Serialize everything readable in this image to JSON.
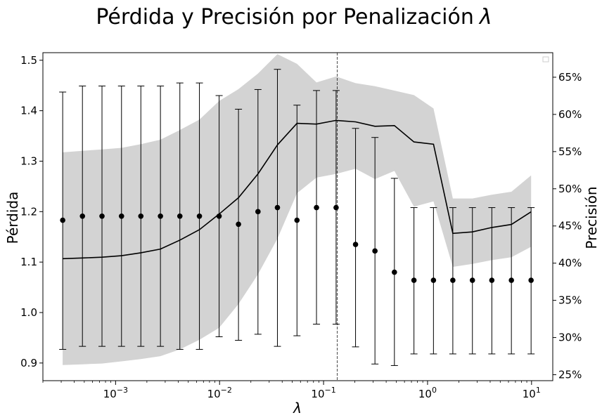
{
  "chart_data": {
    "type": "line",
    "title": "Pérdida y Precisión por Penalización",
    "title_symbol": "λ",
    "xlabel": "λ",
    "ylabel_left": "Pérdida",
    "ylabel_right": "Precisión",
    "x_scale": "log",
    "xlim": [
      0.0002,
      16
    ],
    "ylim_left": [
      0.865,
      1.515
    ],
    "ylim_right": [
      24.2,
      68.3
    ],
    "legend": "top-right (empty)",
    "grid": false,
    "x_ticks": [
      {
        "value": 0.001,
        "base": "10",
        "exp": "−3"
      },
      {
        "value": 0.01,
        "base": "10",
        "exp": "−2"
      },
      {
        "value": 0.1,
        "base": "10",
        "exp": "−1"
      },
      {
        "value": 1,
        "base": "10",
        "exp": "0"
      },
      {
        "value": 10,
        "base": "10",
        "exp": "1"
      }
    ],
    "y_ticks_left": [
      {
        "value": 0.9,
        "label": "0.9"
      },
      {
        "value": 1.0,
        "label": "1.0"
      },
      {
        "value": 1.1,
        "label": "1.1"
      },
      {
        "value": 1.2,
        "label": "1.2"
      },
      {
        "value": 1.3,
        "label": "1.3"
      },
      {
        "value": 1.4,
        "label": "1.4"
      },
      {
        "value": 1.5,
        "label": "1.5"
      }
    ],
    "y_ticks_right": [
      {
        "value": 25,
        "label": "25%"
      },
      {
        "value": 30,
        "label": "30%"
      },
      {
        "value": 35,
        "label": "35%"
      },
      {
        "value": 40,
        "label": "40%"
      },
      {
        "value": 45,
        "label": "45%"
      },
      {
        "value": 50,
        "label": "50%"
      },
      {
        "value": 55,
        "label": "55%"
      },
      {
        "value": 60,
        "label": "60%"
      },
      {
        "value": 65,
        "label": "65%"
      }
    ],
    "best_lambda": 0.135,
    "lambda": [
      0.00031,
      0.00048,
      0.00074,
      0.00114,
      0.00175,
      0.0027,
      0.00415,
      0.0064,
      0.0099,
      0.0152,
      0.0234,
      0.036,
      0.0555,
      0.0855,
      0.132,
      0.203,
      0.312,
      0.48,
      0.74,
      1.14,
      1.75,
      2.7,
      4.15,
      6.4,
      9.9
    ],
    "accuracy_pct": [
      40.6,
      40.7,
      40.8,
      41.0,
      41.4,
      41.9,
      43.1,
      44.5,
      46.6,
      48.8,
      52.0,
      55.9,
      58.8,
      58.7,
      59.2,
      59.0,
      58.4,
      58.5,
      56.3,
      56.0,
      44.0,
      44.2,
      44.8,
      45.2,
      46.9
    ],
    "accuracy_upper_pct": [
      54.9,
      55.1,
      55.3,
      55.5,
      56.0,
      56.6,
      57.9,
      59.3,
      61.8,
      63.4,
      65.5,
      68.1,
      66.8,
      64.3,
      65.1,
      64.2,
      63.8,
      63.2,
      62.6,
      60.8,
      48.7,
      48.7,
      49.2,
      49.6,
      51.8
    ],
    "accuracy_lower_pct": [
      26.3,
      26.4,
      26.5,
      26.8,
      27.1,
      27.5,
      28.4,
      29.7,
      31.3,
      34.5,
      38.5,
      43.3,
      49.4,
      51.5,
      52.0,
      52.7,
      51.3,
      52.4,
      47.6,
      48.3,
      39.5,
      39.9,
      40.4,
      40.8,
      42.2
    ],
    "loss": [
      1.183,
      1.191,
      1.191,
      1.191,
      1.191,
      1.191,
      1.191,
      1.191,
      1.191,
      1.175,
      1.2,
      1.208,
      1.183,
      1.208,
      1.208,
      1.135,
      1.122,
      1.08,
      1.064,
      1.064,
      1.064,
      1.064,
      1.064,
      1.064,
      1.064
    ],
    "loss_upper": [
      1.437,
      1.449,
      1.449,
      1.449,
      1.449,
      1.449,
      1.455,
      1.455,
      1.43,
      1.403,
      1.442,
      1.482,
      1.411,
      1.44,
      1.44,
      1.365,
      1.347,
      1.266,
      1.208,
      1.208,
      1.208,
      1.208,
      1.208,
      1.208,
      1.208
    ],
    "loss_lower": [
      0.927,
      0.933,
      0.933,
      0.933,
      0.933,
      0.933,
      0.927,
      0.927,
      0.952,
      0.945,
      0.957,
      0.933,
      0.954,
      0.977,
      0.977,
      0.932,
      0.898,
      0.895,
      0.918,
      0.918,
      0.918,
      0.918,
      0.918,
      0.918,
      0.918
    ]
  }
}
